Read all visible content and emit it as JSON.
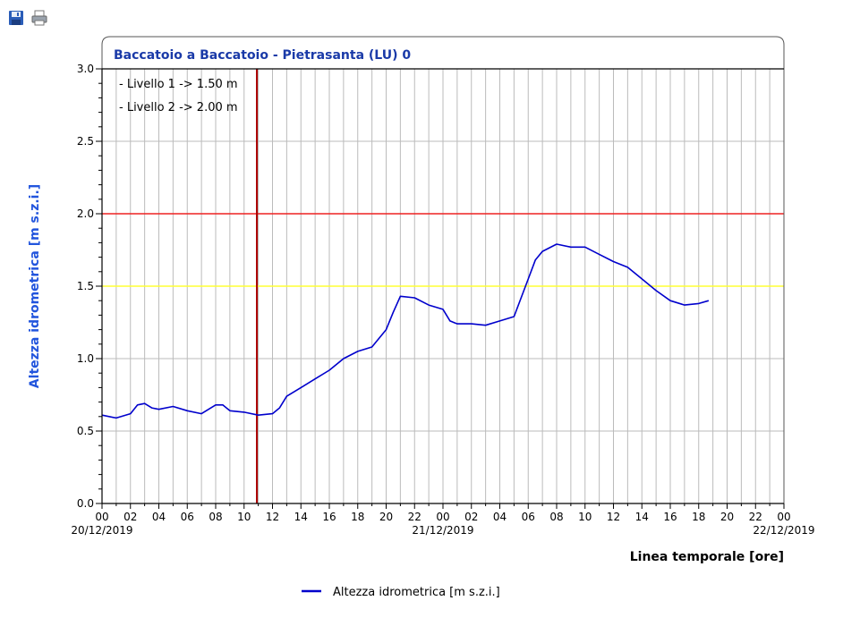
{
  "toolbar": {
    "save_icon": "floppy-disk-save-icon",
    "print_icon": "printer-icon"
  },
  "colors": {
    "series": "#0000cc",
    "level1": "#ffff33",
    "level2": "#ee2222",
    "now_line": "#aa0000",
    "title": "#1a3aa8",
    "ylabel": "#2255dd",
    "grid": "#bbbbbb"
  },
  "chart_data": {
    "type": "line",
    "title": "Baccatoio a Baccatoio - Pietrasanta (LU) 0",
    "ylabel": "Altezza idrometrica [m s.z.i.]",
    "xlabel": "Linea temporale [ore]",
    "ylim": [
      0,
      3
    ],
    "yticks": [
      "0.0",
      "0.5",
      "1.0",
      "1.5",
      "2.0",
      "2.5",
      "3.0"
    ],
    "xlim_hours": [
      0,
      48
    ],
    "xticks": [
      "00",
      "02",
      "04",
      "06",
      "08",
      "10",
      "12",
      "14",
      "16",
      "18",
      "20",
      "22",
      "00",
      "02",
      "04",
      "06",
      "08",
      "10",
      "12",
      "14",
      "16",
      "18",
      "20",
      "22",
      "00"
    ],
    "date_labels": [
      "20/12/2019",
      "21/12/2019",
      "22/12/2019"
    ],
    "grid": true,
    "thresholds": [
      {
        "label": "- Livello 1 -> 1.50 m",
        "value": 1.5
      },
      {
        "label": "- Livello 2 -> 2.00 m",
        "value": 2.0
      }
    ],
    "now_marker_hours": 10.9,
    "series": [
      {
        "name": "Altezza idrometrica [m s.z.i.]",
        "x": [
          0,
          1,
          2,
          2.5,
          3,
          3.5,
          4,
          5,
          6,
          7,
          8,
          8.5,
          9,
          10,
          11,
          12,
          12.5,
          13,
          14,
          15,
          16,
          17,
          18,
          19,
          20,
          20.5,
          21,
          22,
          23,
          24,
          24.5,
          25,
          26,
          27,
          28,
          29,
          30,
          30.5,
          31,
          32,
          33,
          34,
          35,
          36,
          37,
          38,
          39,
          40,
          41,
          42,
          42.7
        ],
        "y": [
          0.61,
          0.59,
          0.62,
          0.68,
          0.69,
          0.66,
          0.65,
          0.67,
          0.64,
          0.62,
          0.68,
          0.68,
          0.64,
          0.63,
          0.61,
          0.62,
          0.66,
          0.74,
          0.8,
          0.86,
          0.92,
          1.0,
          1.05,
          1.08,
          1.2,
          1.32,
          1.43,
          1.42,
          1.37,
          1.34,
          1.26,
          1.24,
          1.24,
          1.23,
          1.26,
          1.29,
          1.55,
          1.68,
          1.74,
          1.79,
          1.77,
          1.77,
          1.72,
          1.67,
          1.63,
          1.55,
          1.47,
          1.4,
          1.37,
          1.38,
          1.4
        ]
      }
    ]
  }
}
